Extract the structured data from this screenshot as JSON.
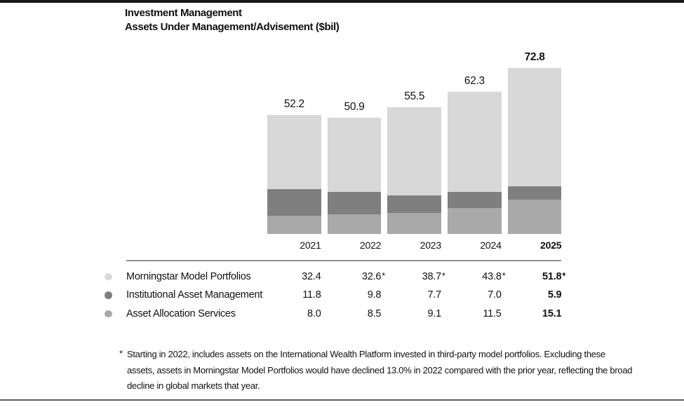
{
  "header": {
    "title_line1": "Investment Management",
    "title_line2": "Assets Under Management/Advisement ($bil)"
  },
  "chart_data": {
    "type": "bar",
    "stacked": true,
    "title": "Investment Management",
    "subtitle": "Assets Under Management/Advisement ($bil)",
    "categories": [
      "2021",
      "2022",
      "2023",
      "2024",
      "2025"
    ],
    "totals": [
      52.2,
      50.9,
      55.5,
      62.3,
      72.8
    ],
    "total_labels": [
      "52.2",
      "50.9",
      "55.5",
      "62.3",
      "72.8"
    ],
    "series": [
      {
        "name": "Morningstar Model Portfolios",
        "values": [
          32.4,
          32.6,
          38.7,
          43.8,
          51.8
        ],
        "display": [
          "32.4",
          "32.6*",
          "38.7*",
          "43.8*",
          "51.8*"
        ],
        "color": "#d8d8d8"
      },
      {
        "name": "Institutional Asset Management",
        "values": [
          11.8,
          9.8,
          7.7,
          7.0,
          5.9
        ],
        "display": [
          "11.8",
          "9.8",
          "7.7",
          "7.0",
          "5.9"
        ],
        "color": "#7f7f7f"
      },
      {
        "name": "Asset Allocation Services",
        "values": [
          8.0,
          8.5,
          9.1,
          11.5,
          15.1
        ],
        "display": [
          "8.0",
          "8.5",
          "9.1",
          "11.5",
          "15.1"
        ],
        "color": "#a9a9a9"
      }
    ],
    "stack_order_bottom_to_top": [
      2,
      1,
      0
    ],
    "highlight_category": "2025",
    "legend_position": "table-rows-left",
    "grid": false,
    "axis_labels": "none; totals printed above bars, per-series values in table below"
  },
  "footnote": {
    "marker": "*",
    "lines": [
      "Starting in 2022, includes assets on the International Wealth Platform invested in third-party model portfolios. Excluding these",
      "assets, assets in Morningstar Model Portfolios would have declined 13.0% in 2022 compared with the prior year, reflecting the broad",
      "decline in global markets that year."
    ]
  }
}
